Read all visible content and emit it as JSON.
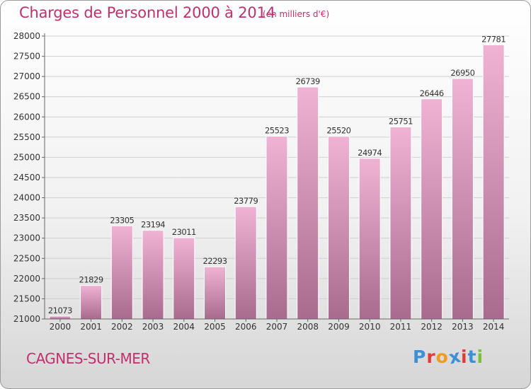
{
  "header": {
    "title": "Charges de Personnel 2000 à 2014",
    "subtitle": "(en milliers d'€)"
  },
  "footer": {
    "city": "CAGNES-SUR-MER",
    "logo": "Proxiti"
  },
  "colors": {
    "accent": "#c0306e",
    "bar_top": "#f0b3d4",
    "bar_bottom": "#a86b8e",
    "logo_letters": [
      "#3d8fd6",
      "#e03a3a",
      "#f29a1e",
      "#3d8fd6",
      "#e03a3a",
      "#3d8fd6",
      "#7cbf3a"
    ]
  },
  "chart_data": {
    "type": "bar",
    "categories": [
      "2000",
      "2001",
      "2002",
      "2003",
      "2004",
      "2005",
      "2006",
      "2007",
      "2008",
      "2009",
      "2010",
      "2011",
      "2012",
      "2013",
      "2014"
    ],
    "values": [
      21073,
      21829,
      23305,
      23194,
      23011,
      22293,
      23779,
      25523,
      26739,
      25520,
      24974,
      25751,
      26446,
      26950,
      27781
    ],
    "ylim": [
      21000,
      28000
    ],
    "yticks": [
      21000,
      21500,
      22000,
      22500,
      23000,
      23500,
      24000,
      24500,
      25000,
      25500,
      26000,
      26500,
      27000,
      27500,
      28000
    ],
    "grid": true,
    "data_labels": true
  }
}
